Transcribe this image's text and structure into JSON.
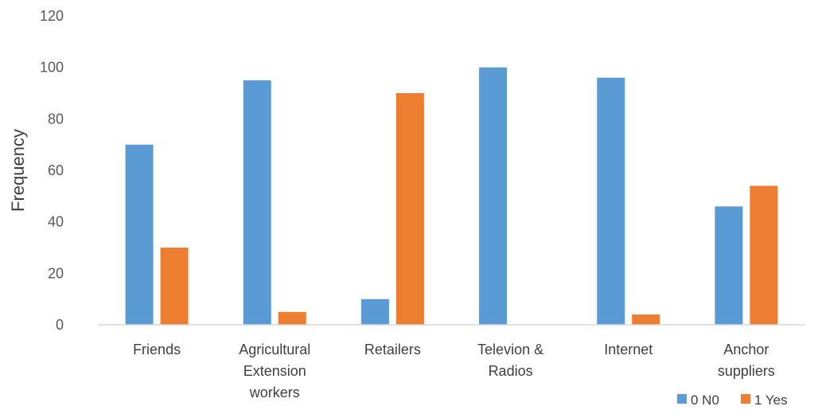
{
  "chart_data": {
    "type": "bar",
    "title": "",
    "xlabel": "",
    "ylabel": "Frequency",
    "ylim": [
      0,
      120
    ],
    "yticks": [
      0,
      20,
      40,
      60,
      80,
      100,
      120
    ],
    "grid": false,
    "legend_position": "bottom-right",
    "categories": [
      [
        "Friends"
      ],
      [
        "Agricultural",
        "Extension",
        "workers"
      ],
      [
        "Retailers"
      ],
      [
        "Televion &",
        "Radios"
      ],
      [
        "Internet"
      ],
      [
        "Anchor",
        "suppliers"
      ]
    ],
    "series": [
      {
        "name": "0 N0",
        "color": "#5B9BD5",
        "values": [
          70,
          95,
          10,
          100,
          96,
          46
        ]
      },
      {
        "name": "1 Yes",
        "color": "#ED7D31",
        "values": [
          30,
          5,
          90,
          0,
          4,
          54
        ]
      }
    ]
  }
}
